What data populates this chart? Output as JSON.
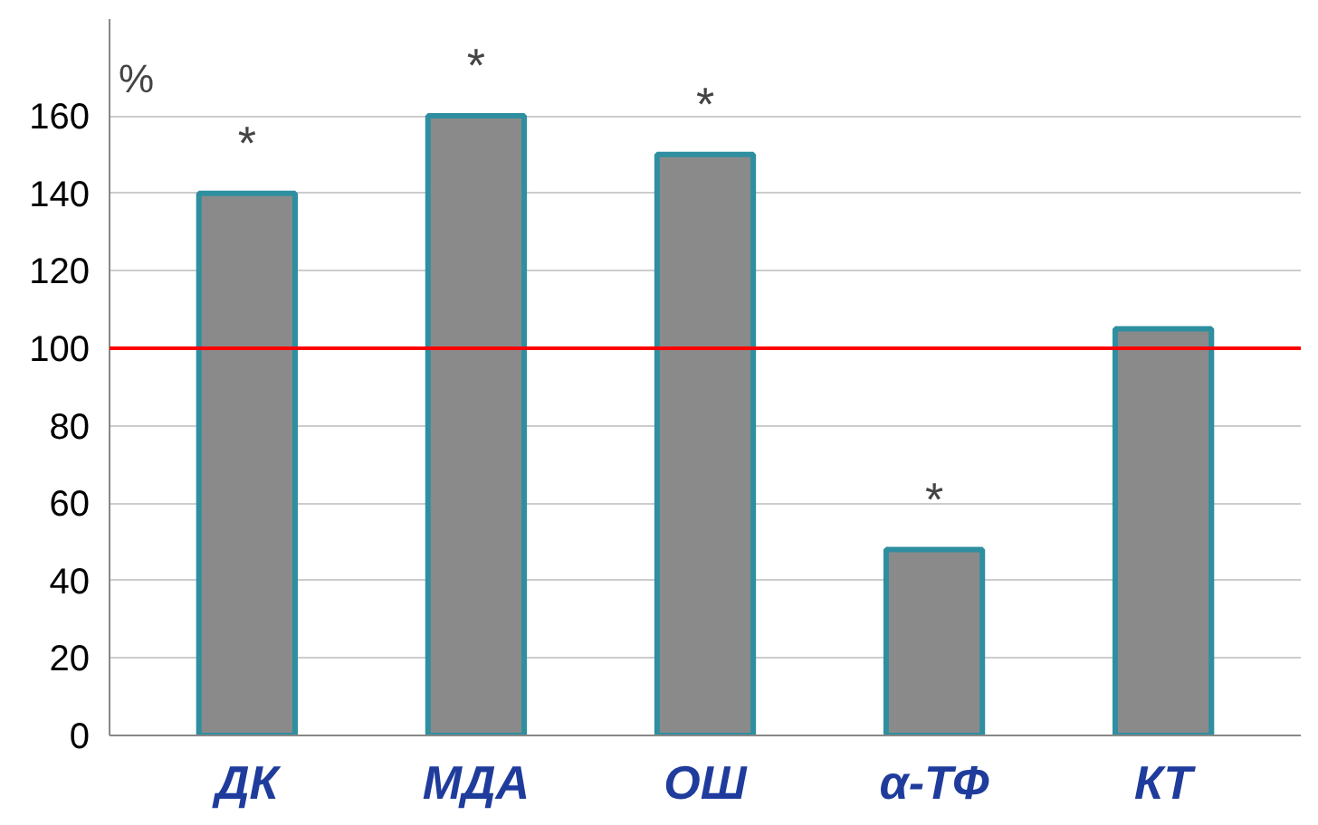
{
  "chart_data": {
    "type": "bar",
    "ylabel": "%",
    "categories": [
      "ДК",
      "МДА",
      "ОШ",
      "α-ТФ",
      "КТ"
    ],
    "values": [
      140,
      160,
      150,
      48,
      105
    ],
    "color": "#8a8a8a",
    "ylim": [
      0,
      185
    ],
    "yticks": [
      0,
      20,
      40,
      60,
      80,
      100,
      120,
      140,
      160
    ],
    "grid": "y",
    "ref_lines": [
      {
        "axis": "y",
        "value": 100,
        "label": null,
        "color": "#ff0000"
      }
    ],
    "value_labels": [
      "*",
      "*",
      "*",
      "*",
      null
    ]
  }
}
